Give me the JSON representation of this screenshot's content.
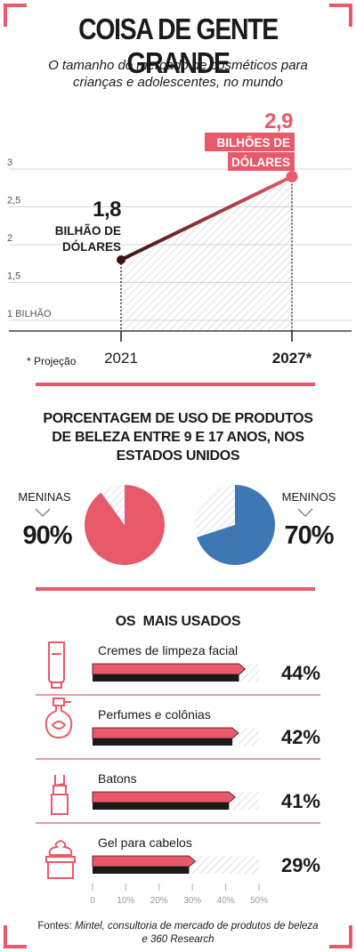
{
  "header": {
    "title": "COISA DE GENTE GRANDE",
    "subtitle": "O tamanho do mercado de cosméticos para crianças e adolescentes, no mundo"
  },
  "colors": {
    "accent": "#e85a6a",
    "blue": "#3e78b2",
    "dark": "#1a1a1a",
    "hatch": "#c8c8c8"
  },
  "chart_data": [
    {
      "type": "line",
      "title": "O tamanho do mercado de cosméticos para crianças e adolescentes, no mundo",
      "x": [
        "2021",
        "2027*"
      ],
      "series": [
        {
          "values": [
            1.8,
            2.9
          ]
        }
      ],
      "ylim": [
        1,
        3
      ],
      "yticks": [
        "1 BILHÃO",
        "1,5",
        "2",
        "2,5",
        "3"
      ],
      "annotations": [
        {
          "value": "1,8",
          "unit": "BILHÃO DE DÓLARES"
        },
        {
          "value": "2,9",
          "unit": "BILHÕES DE DÓLARES"
        }
      ],
      "note": "* Projeção"
    },
    {
      "type": "pie",
      "title": "PORCENTAGEM DE USO DE PRODUTOS DE BELEZA ENTRE 9 E 17 ANOS, NOS ESTADOS UNIDOS",
      "groups": [
        {
          "label": "MENINAS",
          "value": 90,
          "display": "90%",
          "color": "#e85a6a"
        },
        {
          "label": "MENINOS",
          "value": 70,
          "display": "70%",
          "color": "#3e78b2"
        }
      ]
    },
    {
      "type": "bar",
      "title": "OS  MAIS USADOS",
      "categories": [
        "Cremes de limpeza facial",
        "Perfumes e colônias",
        "Batons",
        "Gel para cabelos"
      ],
      "values": [
        44,
        42,
        41,
        29
      ],
      "display": [
        "44%",
        "42%",
        "41%",
        "29%"
      ],
      "icons": [
        "cream-tube-icon",
        "perfume-bottle-icon",
        "lipstick-icon",
        "hair-gel-jar-icon"
      ],
      "xlim": [
        0,
        50
      ],
      "xticks": [
        "0",
        "10%",
        "20%",
        "30%",
        "40%",
        "50%"
      ]
    }
  ],
  "footer": {
    "prefix": "Fontes: ",
    "source": "Mintel, consultoria de mercado de produtos de beleza e 360 Research"
  }
}
